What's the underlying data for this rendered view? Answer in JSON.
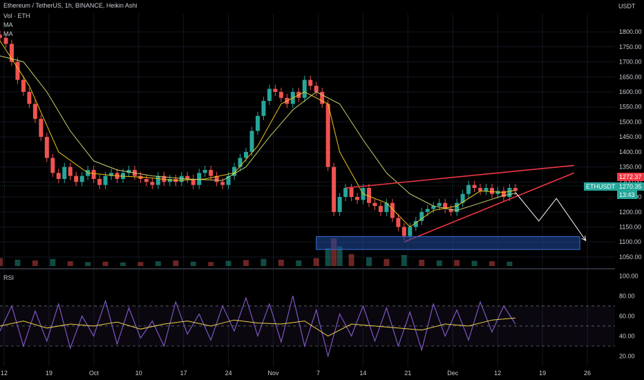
{
  "header": {
    "title": "Ethereum / TetherUS, 1h, BINANCE, Heikin Ashi",
    "vol_label": "Vol · ETH",
    "ma1_label": "MA",
    "ma2_label": "MA"
  },
  "rsi_label": "RSI",
  "currency_label": "USDT",
  "price_tags": {
    "last_price": "1272.37",
    "symbol": "ETHUSDT",
    "current_price": "1270.35",
    "countdown": "13:43"
  },
  "colors": {
    "up": "#26a69a",
    "down": "#ef5350",
    "ma_fast": "#f0c419",
    "ma_slow": "#c8d26f",
    "rsi": "#7e57c2",
    "rsi_ma": "#f2d24b",
    "trendline": "#f23645",
    "support_zone": "#1f4a9e",
    "projection": "#ffffff"
  },
  "chart_data": [
    {
      "type": "candlestick",
      "title": "Ethereum / TetherUS, 1h, BINANCE, Heikin Ashi",
      "y_range": [
        1020,
        1860
      ],
      "y_ticks": [
        1050,
        1100,
        1150,
        1200,
        1250,
        1300,
        1350,
        1400,
        1450,
        1500,
        1550,
        1600,
        1650,
        1700,
        1750,
        1800
      ],
      "x_tick_labels": [
        "12",
        "19",
        "Oct",
        "10",
        "17",
        "24",
        "Nov",
        "7",
        "14",
        "21",
        "Dec",
        "12",
        "19",
        "26"
      ],
      "x_range_days": [
        0,
        105
      ],
      "series": [
        {
          "name": "ETHUSDT close",
          "x_days": [
            0,
            1,
            2,
            3,
            4,
            5,
            6,
            7,
            8,
            9,
            10,
            11,
            12,
            13,
            14,
            15,
            16,
            17,
            18,
            19,
            20,
            21,
            22,
            23,
            24,
            25,
            26,
            27,
            28,
            29,
            30,
            31,
            32,
            33,
            34,
            35,
            36,
            37,
            38,
            39,
            40,
            41,
            42,
            43,
            44,
            45,
            46,
            47,
            48,
            49,
            50,
            51,
            52,
            53,
            54,
            55,
            56,
            57,
            58,
            59,
            60,
            61,
            62,
            63,
            64,
            65,
            66,
            67,
            68,
            69,
            70,
            71,
            72,
            73,
            74,
            75,
            76,
            77,
            78,
            79,
            80,
            81,
            82,
            83,
            84,
            85,
            86,
            87,
            88
          ],
          "values": [
            1780,
            1760,
            1700,
            1640,
            1600,
            1560,
            1510,
            1450,
            1380,
            1330,
            1310,
            1350,
            1320,
            1300,
            1320,
            1340,
            1310,
            1290,
            1320,
            1330,
            1310,
            1330,
            1340,
            1320,
            1310,
            1300,
            1290,
            1320,
            1300,
            1310,
            1300,
            1320,
            1310,
            1290,
            1330,
            1340,
            1320,
            1300,
            1290,
            1320,
            1350,
            1380,
            1400,
            1470,
            1520,
            1570,
            1610,
            1600,
            1580,
            1560,
            1600,
            1580,
            1640,
            1620,
            1600,
            1560,
            1350,
            1200,
            1250,
            1280,
            1250,
            1240,
            1280,
            1230,
            1220,
            1200,
            1230,
            1180,
            1150,
            1120,
            1150,
            1170,
            1200,
            1210,
            1220,
            1230,
            1210,
            1200,
            1230,
            1260,
            1290,
            1280,
            1270,
            1280,
            1260,
            1270,
            1250,
            1280,
            1270
          ]
        },
        {
          "name": "MA",
          "x_days": [
            0,
            5,
            10,
            15,
            20,
            25,
            30,
            35,
            40,
            44,
            48,
            52,
            56,
            58,
            62,
            66,
            70,
            74,
            78,
            82,
            86,
            88
          ],
          "values": [
            1770,
            1620,
            1400,
            1330,
            1320,
            1315,
            1305,
            1310,
            1330,
            1420,
            1560,
            1600,
            1560,
            1400,
            1260,
            1230,
            1150,
            1205,
            1220,
            1270,
            1265,
            1272
          ]
        },
        {
          "name": "MA",
          "x_days": [
            0,
            4,
            8,
            12,
            16,
            20,
            26,
            32,
            38,
            42,
            46,
            50,
            54,
            58,
            62,
            66,
            70,
            74,
            78,
            82,
            86,
            88
          ],
          "values": [
            1720,
            1700,
            1600,
            1470,
            1370,
            1340,
            1320,
            1310,
            1305,
            1350,
            1450,
            1540,
            1600,
            1560,
            1440,
            1330,
            1260,
            1220,
            1205,
            1230,
            1255,
            1262
          ]
        }
      ],
      "volume": {
        "name": "Vol · ETH",
        "x_days": [
          0,
          3,
          6,
          9,
          12,
          15,
          18,
          21,
          24,
          27,
          30,
          33,
          36,
          39,
          42,
          45,
          48,
          51,
          54,
          56,
          57,
          58,
          60,
          63,
          66,
          69,
          72,
          75,
          78,
          81,
          84,
          87
        ],
        "values": [
          20,
          16,
          14,
          18,
          12,
          10,
          11,
          9,
          10,
          12,
          14,
          11,
          10,
          13,
          15,
          18,
          16,
          14,
          20,
          45,
          70,
          50,
          30,
          22,
          18,
          28,
          16,
          14,
          15,
          13,
          12,
          11
        ]
      },
      "annotations": [
        {
          "type": "trendline",
          "from": [
            59,
            1280
          ],
          "to": [
            98,
            1355
          ]
        },
        {
          "type": "trendline",
          "from": [
            69,
            1100
          ],
          "to": [
            98,
            1330
          ]
        },
        {
          "type": "zone",
          "x": [
            54,
            99
          ],
          "y": [
            1075,
            1118
          ]
        },
        {
          "type": "projection",
          "points": [
            [
              88,
              1265
            ],
            [
              92,
              1170
            ],
            [
              95,
              1245
            ],
            [
              100,
              1105
            ]
          ]
        }
      ]
    },
    {
      "type": "line",
      "title": "RSI",
      "y_range": [
        10,
        105
      ],
      "y_ticks": [
        20,
        40,
        60,
        80,
        100
      ],
      "bands": [
        30,
        50,
        70
      ],
      "series": [
        {
          "name": "RSI",
          "x_days": [
            0,
            2,
            4,
            6,
            8,
            10,
            12,
            14,
            16,
            18,
            20,
            22,
            24,
            26,
            28,
            30,
            32,
            34,
            36,
            38,
            40,
            42,
            44,
            46,
            48,
            50,
            52,
            54,
            56,
            58,
            60,
            62,
            64,
            66,
            68,
            70,
            72,
            74,
            76,
            78,
            80,
            82,
            84,
            86,
            88
          ],
          "values": [
            45,
            70,
            30,
            65,
            35,
            72,
            28,
            60,
            40,
            75,
            32,
            68,
            38,
            55,
            30,
            74,
            42,
            62,
            36,
            70,
            45,
            78,
            40,
            72,
            34,
            80,
            30,
            66,
            20,
            62,
            40,
            70,
            35,
            68,
            30,
            64,
            26,
            72,
            40,
            66,
            36,
            74,
            44,
            70,
            52
          ]
        },
        {
          "name": "RSI MA",
          "x_days": [
            0,
            4,
            8,
            12,
            16,
            20,
            24,
            28,
            32,
            36,
            40,
            44,
            48,
            52,
            56,
            60,
            64,
            68,
            72,
            76,
            80,
            84,
            88
          ],
          "values": [
            50,
            55,
            48,
            52,
            50,
            54,
            47,
            52,
            55,
            50,
            56,
            53,
            52,
            55,
            40,
            52,
            50,
            48,
            46,
            52,
            50,
            56,
            58
          ]
        }
      ]
    }
  ]
}
